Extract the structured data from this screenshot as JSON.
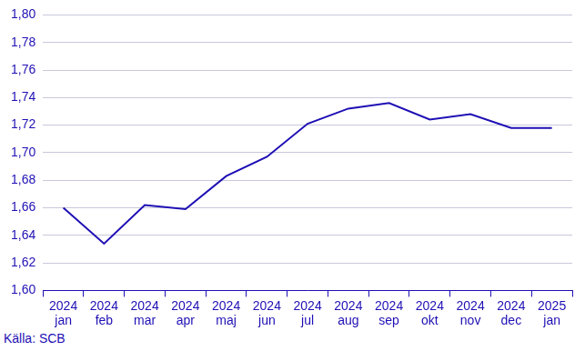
{
  "chart_data": {
    "type": "line",
    "source": "Källa: SCB",
    "categories": [
      "2024 jan",
      "2024 feb",
      "2024 mar",
      "2024 apr",
      "2024 maj",
      "2024 jun",
      "2024 jul",
      "2024 aug",
      "2024 sep",
      "2024 okt",
      "2024 nov",
      "2024 dec",
      "2025 jan"
    ],
    "values": [
      1.66,
      1.634,
      1.662,
      1.659,
      1.683,
      1.697,
      1.721,
      1.732,
      1.736,
      1.724,
      1.728,
      1.718,
      1.718
    ],
    "color": "#1e0fb4",
    "ylim": [
      1.6,
      1.8
    ],
    "yticks": [
      {
        "value": 1.6,
        "label": "1,60"
      },
      {
        "value": 1.62,
        "label": "1,62"
      },
      {
        "value": 1.64,
        "label": "1,64"
      },
      {
        "value": 1.66,
        "label": "1,66"
      },
      {
        "value": 1.68,
        "label": "1,68"
      },
      {
        "value": 1.7,
        "label": "1,70"
      },
      {
        "value": 1.72,
        "label": "1,72"
      },
      {
        "value": 1.74,
        "label": "1,74"
      },
      {
        "value": 1.76,
        "label": "1,76"
      },
      {
        "value": 1.78,
        "label": "1,78"
      },
      {
        "value": 1.8,
        "label": "1,80"
      }
    ],
    "grid": true
  }
}
